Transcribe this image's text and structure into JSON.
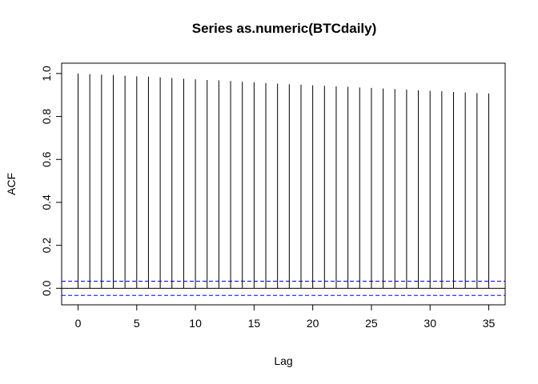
{
  "chart_data": {
    "type": "bar",
    "title": "Series  as.numeric(BTCdaily)",
    "xlabel": "Lag",
    "ylabel": "ACF",
    "xlim": [
      -1.4,
      36.4
    ],
    "ylim": [
      -0.077,
      1.048
    ],
    "x_ticks": [
      0,
      5,
      10,
      15,
      20,
      25,
      30,
      35
    ],
    "y_ticks": [
      0.0,
      0.2,
      0.4,
      0.6,
      0.8,
      1.0
    ],
    "y_tick_labels": [
      "0.0",
      "0.2",
      "0.4",
      "0.6",
      "0.8",
      "1.0"
    ],
    "lags": [
      0,
      1,
      2,
      3,
      4,
      5,
      6,
      7,
      8,
      9,
      10,
      11,
      12,
      13,
      14,
      15,
      16,
      17,
      18,
      19,
      20,
      21,
      22,
      23,
      24,
      25,
      26,
      27,
      28,
      29,
      30,
      31,
      32,
      33,
      34,
      35
    ],
    "values": [
      1.0,
      0.997,
      0.995,
      0.993,
      0.99,
      0.987,
      0.985,
      0.982,
      0.979,
      0.976,
      0.973,
      0.97,
      0.968,
      0.965,
      0.962,
      0.959,
      0.956,
      0.953,
      0.95,
      0.948,
      0.945,
      0.943,
      0.94,
      0.938,
      0.935,
      0.933,
      0.93,
      0.928,
      0.925,
      0.922,
      0.919,
      0.917,
      0.914,
      0.912,
      0.909,
      0.907
    ],
    "confidence_bound": 0.033,
    "grid": false,
    "colors": {
      "bars": "#000000",
      "confidence_lines": "#0000ff",
      "zero_line": "#000000"
    }
  }
}
